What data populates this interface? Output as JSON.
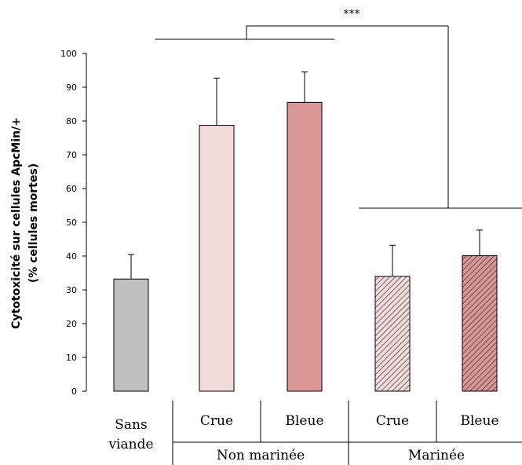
{
  "chart_data": {
    "type": "bar",
    "ylabel_line1": "Cytotoxicité sur cellules ApcMin/+",
    "ylabel_line2": "(% cellules mortes)",
    "ylim": [
      0,
      100
    ],
    "ytick_step": 10,
    "bars": [
      {
        "value": 33.2,
        "error": 7.3,
        "fill": "#bfbfbf",
        "pattern": "none"
      },
      {
        "value": 78.7,
        "error": 14.0,
        "fill": "#f2dcdb",
        "pattern": "none"
      },
      {
        "value": 85.5,
        "error": 9.0,
        "fill": "#d99694",
        "pattern": "none"
      },
      {
        "value": 34.0,
        "error": 9.2,
        "fill": "#f2dcdb",
        "pattern": "hatch"
      },
      {
        "value": 40.1,
        "error": 7.6,
        "fill": "#d99694",
        "pattern": "hatch"
      }
    ],
    "categories": [
      {
        "line1": "Sans",
        "line2": "viande"
      },
      {
        "line1": "Crue"
      },
      {
        "line1": "Bleue"
      },
      {
        "line1": "Crue"
      },
      {
        "line1": "Bleue"
      }
    ],
    "groups": [
      "Non marinée",
      "Marinée"
    ],
    "significance": "***"
  }
}
